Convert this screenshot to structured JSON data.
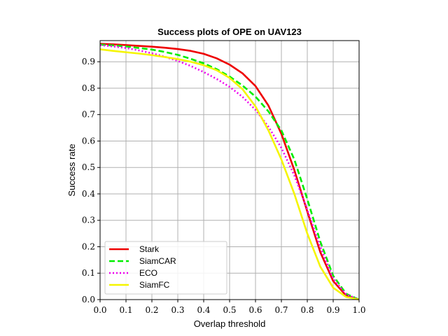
{
  "chart_data": {
    "type": "line",
    "title": "Success plots of OPE on UAV123",
    "xlabel": "Overlap threshold",
    "ylabel": "Success rate",
    "xlim": [
      0.0,
      1.0
    ],
    "ylim": [
      0.0,
      0.98
    ],
    "xticks": [
      "0.0",
      "0.1",
      "0.2",
      "0.3",
      "0.4",
      "0.5",
      "0.6",
      "0.7",
      "0.8",
      "0.9",
      "1.0"
    ],
    "yticks": [
      "0.0",
      "0.1",
      "0.2",
      "0.3",
      "0.4",
      "0.5",
      "0.6",
      "0.7",
      "0.8",
      "0.9"
    ],
    "grid": true,
    "legend_position": "lower-left",
    "x": [
      0.0,
      0.05,
      0.1,
      0.15,
      0.2,
      0.25,
      0.3,
      0.35,
      0.4,
      0.45,
      0.5,
      0.55,
      0.6,
      0.65,
      0.7,
      0.75,
      0.8,
      0.85,
      0.9,
      0.95,
      1.0
    ],
    "series": [
      {
        "name": "Stark",
        "color": "#ee0000",
        "dash": "solid",
        "values": [
          0.968,
          0.966,
          0.963,
          0.96,
          0.957,
          0.953,
          0.948,
          0.941,
          0.93,
          0.913,
          0.889,
          0.856,
          0.808,
          0.734,
          0.627,
          0.49,
          0.333,
          0.18,
          0.07,
          0.015,
          0.0
        ]
      },
      {
        "name": "SiamCAR",
        "color": "#00ee00",
        "dash": "dashed",
        "values": [
          0.965,
          0.962,
          0.958,
          0.952,
          0.946,
          0.937,
          0.926,
          0.911,
          0.894,
          0.872,
          0.844,
          0.81,
          0.768,
          0.712,
          0.64,
          0.53,
          0.38,
          0.22,
          0.09,
          0.022,
          0.0
        ]
      },
      {
        "name": "ECO",
        "color": "#ee00ee",
        "dash": "dotted",
        "values": [
          0.963,
          0.958,
          0.952,
          0.943,
          0.932,
          0.919,
          0.903,
          0.884,
          0.861,
          0.835,
          0.805,
          0.767,
          0.718,
          0.654,
          0.574,
          0.47,
          0.34,
          0.2,
          0.08,
          0.02,
          0.0
        ]
      },
      {
        "name": "SiamFC",
        "color": "#f5f500",
        "dash": "solid",
        "values": [
          0.947,
          0.941,
          0.936,
          0.931,
          0.925,
          0.918,
          0.91,
          0.9,
          0.887,
          0.868,
          0.839,
          0.796,
          0.731,
          0.64,
          0.53,
          0.4,
          0.25,
          0.125,
          0.045,
          0.01,
          0.0
        ]
      }
    ]
  }
}
